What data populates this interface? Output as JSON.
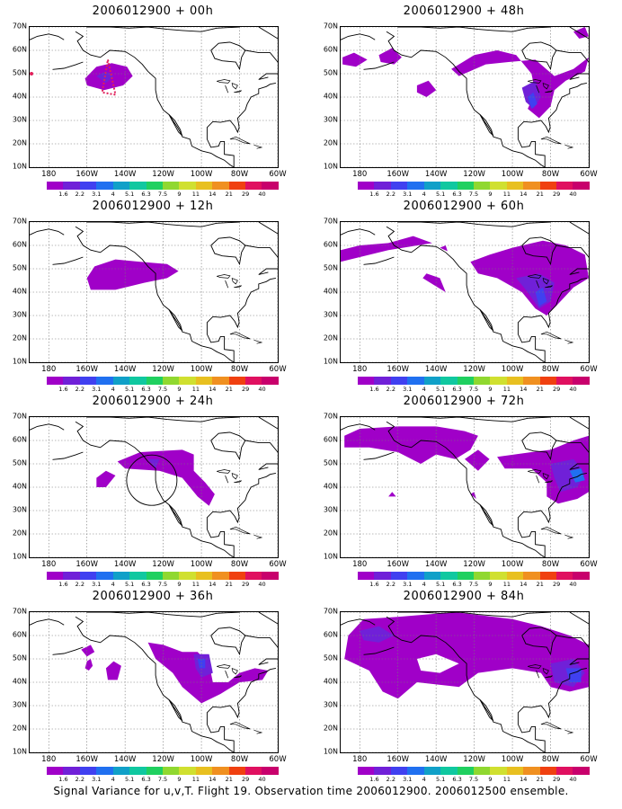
{
  "panels": [
    {
      "title": "2006012900 + 00h"
    },
    {
      "title": "2006012900 + 48h"
    },
    {
      "title": "2006012900 + 12h"
    },
    {
      "title": "2006012900 + 60h"
    },
    {
      "title": "2006012900 + 24h"
    },
    {
      "title": "2006012900 + 72h"
    },
    {
      "title": "2006012900 + 36h"
    },
    {
      "title": "2006012900 + 84h"
    }
  ],
  "axes": {
    "lat_labels": [
      "70N",
      "60N",
      "50N",
      "40N",
      "30N",
      "20N",
      "10N"
    ],
    "lon_labels": [
      "180",
      "160W",
      "140W",
      "120W",
      "100W",
      "80W",
      "60W"
    ]
  },
  "colorbar": {
    "labels": [
      "1.6",
      "2.2",
      "3.1",
      "4",
      "5.1",
      "6.3",
      "7.5",
      "9",
      "11",
      "14",
      "21",
      "29",
      "40"
    ],
    "colors": [
      "#a000c8",
      "#7020d8",
      "#4040f0",
      "#2070f0",
      "#10a0c8",
      "#10c8a0",
      "#20d060",
      "#90d830",
      "#d0e030",
      "#e8c020",
      "#f09020",
      "#f04010",
      "#e01060",
      "#c8006c"
    ]
  },
  "footer": "Signal Variance for u,v,T. Flight 19. Observation time 2006012900. 2006012500 ensemble."
}
